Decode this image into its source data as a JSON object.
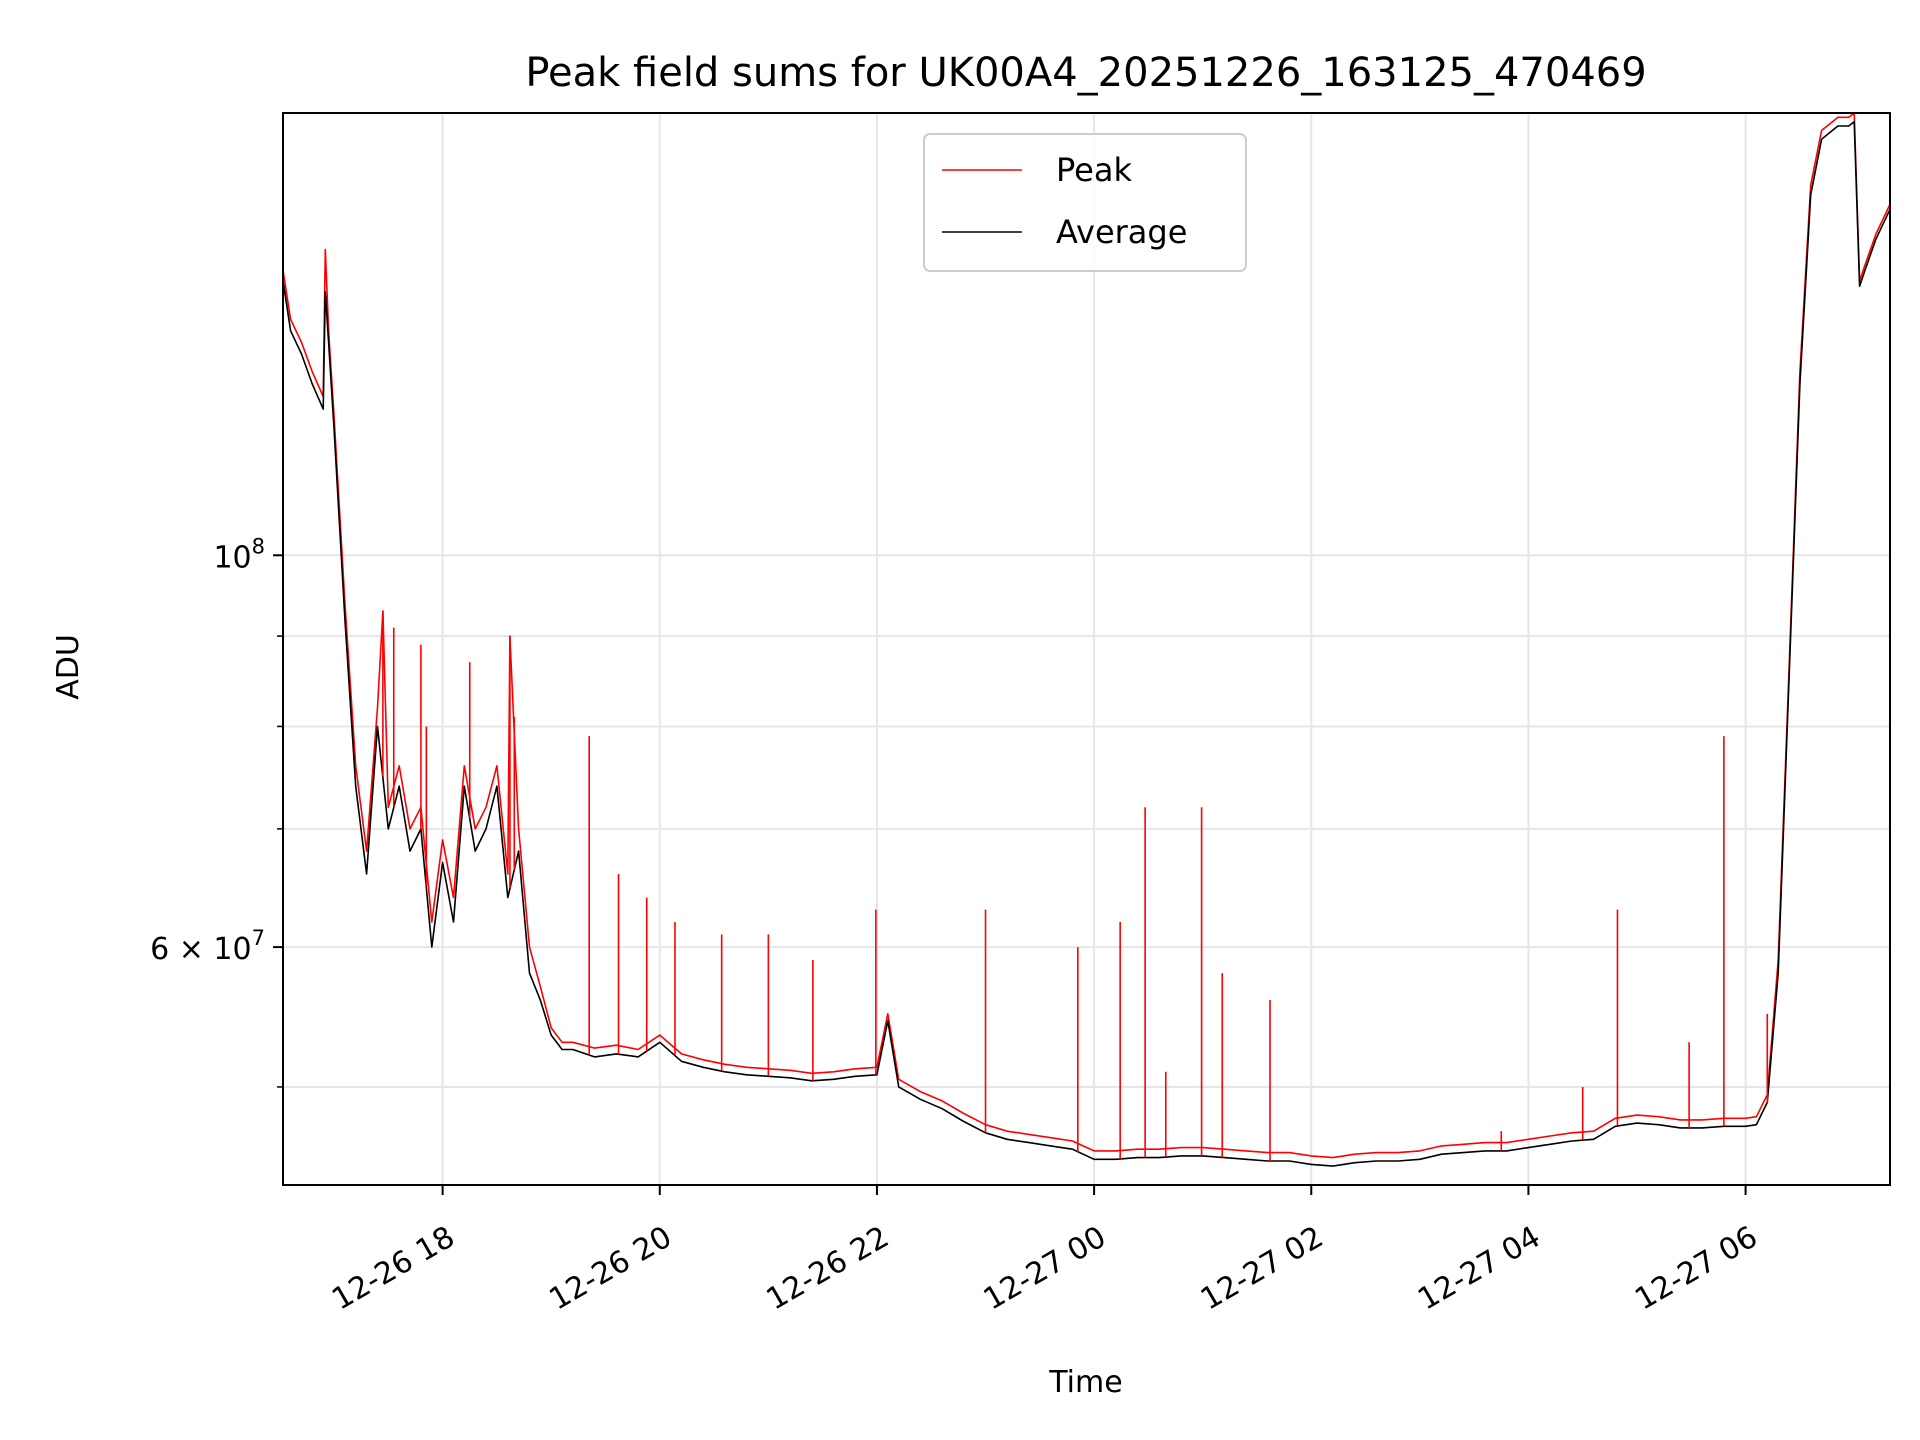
{
  "chart_data": {
    "type": "line",
    "title": "Peak field sums for UK00A4_20251226_163125_470469",
    "xlabel": "Time",
    "ylabel": "ADU",
    "yscale": "log",
    "ylim": [
      44000000,
      178000000
    ],
    "xlim_hours": [
      16.53,
      31.33
    ],
    "grid": true,
    "legend_location": "upper center",
    "x_ticks": [
      {
        "hour": 18,
        "label": "12-26 18"
      },
      {
        "hour": 20,
        "label": "12-26 20"
      },
      {
        "hour": 22,
        "label": "12-26 22"
      },
      {
        "hour": 24,
        "label": "12-27 00"
      },
      {
        "hour": 26,
        "label": "12-27 02"
      },
      {
        "hour": 28,
        "label": "12-27 04"
      },
      {
        "hour": 30,
        "label": "12-27 06"
      }
    ],
    "y_major_ticks": [
      {
        "value": 100000000,
        "base": "10",
        "exp": "8"
      },
      {
        "value": 60000000,
        "mant": "6",
        "base": "10",
        "exp": "7"
      }
    ],
    "y_minor_grid": [
      50000000,
      70000000,
      80000000,
      90000000
    ],
    "series": [
      {
        "name": "Average",
        "color": "#000000",
        "x_hours": [
          16.53,
          16.6,
          16.7,
          16.8,
          16.9,
          16.92,
          16.95,
          17.0,
          17.1,
          17.2,
          17.3,
          17.4,
          17.5,
          17.6,
          17.7,
          17.8,
          17.9,
          18.0,
          18.1,
          18.2,
          18.3,
          18.4,
          18.5,
          18.6,
          18.7,
          18.8,
          18.9,
          19.0,
          19.1,
          19.2,
          19.4,
          19.6,
          19.8,
          20.0,
          20.2,
          20.4,
          20.6,
          20.8,
          21.0,
          21.2,
          21.4,
          21.6,
          21.8,
          22.0,
          22.1,
          22.2,
          22.4,
          22.6,
          22.8,
          23.0,
          23.2,
          23.4,
          23.6,
          23.8,
          24.0,
          24.2,
          24.4,
          24.6,
          24.8,
          25.0,
          25.2,
          25.4,
          25.6,
          25.8,
          26.0,
          26.2,
          26.4,
          26.6,
          26.8,
          27.0,
          27.2,
          27.4,
          27.6,
          27.8,
          28.0,
          28.2,
          28.4,
          28.6,
          28.8,
          29.0,
          29.2,
          29.4,
          29.6,
          29.8,
          30.0,
          30.1,
          30.2,
          30.3,
          30.4,
          30.5,
          30.6,
          30.7,
          30.8,
          30.85,
          30.95,
          31.0,
          31.05,
          31.1,
          31.2,
          31.33
        ],
        "values": [
          143000000,
          134000000,
          130000000,
          125000000,
          121000000,
          141000000,
          132000000,
          118000000,
          92000000,
          74000000,
          66000000,
          80000000,
          70000000,
          74000000,
          68000000,
          70000000,
          60000000,
          67000000,
          62000000,
          74000000,
          68000000,
          70000000,
          74000000,
          64000000,
          68000000,
          58000000,
          56000000,
          53500000,
          52500000,
          52500000,
          52000000,
          52200000,
          52000000,
          53000000,
          51700000,
          51300000,
          51000000,
          50800000,
          50700000,
          50600000,
          50400000,
          50500000,
          50700000,
          50800000,
          54500000,
          50000000,
          49200000,
          48600000,
          47800000,
          47100000,
          46700000,
          46500000,
          46300000,
          46100000,
          45500000,
          45500000,
          45600000,
          45600000,
          45700000,
          45700000,
          45600000,
          45500000,
          45400000,
          45400000,
          45200000,
          45100000,
          45300000,
          45400000,
          45400000,
          45500000,
          45800000,
          45900000,
          46000000,
          46000000,
          46200000,
          46400000,
          46600000,
          46700000,
          47500000,
          47700000,
          47600000,
          47400000,
          47400000,
          47500000,
          47500000,
          47600000,
          49000000,
          58000000,
          85000000,
          125000000,
          160000000,
          172000000,
          174000000,
          175000000,
          175000000,
          176000000,
          142000000,
          145000000,
          151000000,
          157000000
        ]
      },
      {
        "name": "Peak",
        "color": "#ff0000",
        "x_hours": [
          16.53,
          16.6,
          16.7,
          16.8,
          16.9,
          16.92,
          16.95,
          17.0,
          17.1,
          17.2,
          17.3,
          17.4,
          17.45,
          17.5,
          17.6,
          17.7,
          17.8,
          17.9,
          18.0,
          18.1,
          18.2,
          18.3,
          18.4,
          18.5,
          18.6,
          18.62,
          18.7,
          18.8,
          18.9,
          19.0,
          19.1,
          19.2,
          19.4,
          19.6,
          19.8,
          20.0,
          20.2,
          20.4,
          20.6,
          20.8,
          21.0,
          21.2,
          21.4,
          21.6,
          21.8,
          22.0,
          22.1,
          22.2,
          22.4,
          22.6,
          22.8,
          23.0,
          23.2,
          23.4,
          23.6,
          23.8,
          24.0,
          24.2,
          24.4,
          24.6,
          24.8,
          25.0,
          25.2,
          25.4,
          25.6,
          25.8,
          26.0,
          26.2,
          26.4,
          26.6,
          26.8,
          27.0,
          27.2,
          27.4,
          27.6,
          27.8,
          28.0,
          28.2,
          28.4,
          28.6,
          28.8,
          29.0,
          29.2,
          29.4,
          29.6,
          29.8,
          30.0,
          30.1,
          30.2,
          30.3,
          30.4,
          30.5,
          30.6,
          30.7,
          30.8,
          30.85,
          30.95,
          31.0,
          31.05,
          31.1,
          31.2,
          31.33
        ],
        "values": [
          145000000,
          136000000,
          132000000,
          127000000,
          123000000,
          149000000,
          134000000,
          120000000,
          94000000,
          76000000,
          68000000,
          82000000,
          93000000,
          72000000,
          76000000,
          70000000,
          72000000,
          62000000,
          69000000,
          64000000,
          76000000,
          70000000,
          72000000,
          76000000,
          66000000,
          90000000,
          70000000,
          60000000,
          57000000,
          54000000,
          53000000,
          53000000,
          52600000,
          52800000,
          52500000,
          53500000,
          52200000,
          51800000,
          51500000,
          51300000,
          51200000,
          51100000,
          50900000,
          51000000,
          51200000,
          51300000,
          55000000,
          50500000,
          49700000,
          49100000,
          48300000,
          47600000,
          47200000,
          47000000,
          46800000,
          46600000,
          46000000,
          46000000,
          46100000,
          46100000,
          46200000,
          46200000,
          46100000,
          46000000,
          45900000,
          45900000,
          45700000,
          45600000,
          45800000,
          45900000,
          45900000,
          46000000,
          46300000,
          46400000,
          46500000,
          46500000,
          46700000,
          46900000,
          47100000,
          47200000,
          48000000,
          48200000,
          48100000,
          47900000,
          47900000,
          48000000,
          48000000,
          48100000,
          49500000,
          59000000,
          86000000,
          127000000,
          162000000,
          174000000,
          176000000,
          177000000,
          177000000,
          178000000,
          143000000,
          146000000,
          152000000,
          158000000
        ]
      }
    ],
    "peak_spikes": [
      {
        "hour": 17.45,
        "value": 93000000
      },
      {
        "hour": 17.55,
        "value": 91000000
      },
      {
        "hour": 17.8,
        "value": 89000000
      },
      {
        "hour": 17.85,
        "value": 80000000
      },
      {
        "hour": 18.25,
        "value": 87000000
      },
      {
        "hour": 18.62,
        "value": 90000000
      },
      {
        "hour": 18.66,
        "value": 81000000
      },
      {
        "hour": 19.35,
        "value": 79000000
      },
      {
        "hour": 19.62,
        "value": 66000000
      },
      {
        "hour": 19.88,
        "value": 64000000
      },
      {
        "hour": 20.14,
        "value": 62000000
      },
      {
        "hour": 20.57,
        "value": 61000000
      },
      {
        "hour": 21.0,
        "value": 61000000
      },
      {
        "hour": 21.41,
        "value": 59000000
      },
      {
        "hour": 21.99,
        "value": 63000000
      },
      {
        "hour": 23.0,
        "value": 63000000
      },
      {
        "hour": 23.85,
        "value": 60000000
      },
      {
        "hour": 24.24,
        "value": 62000000
      },
      {
        "hour": 24.47,
        "value": 72000000
      },
      {
        "hour": 24.66,
        "value": 51000000
      },
      {
        "hour": 24.99,
        "value": 72000000
      },
      {
        "hour": 25.18,
        "value": 58000000
      },
      {
        "hour": 25.62,
        "value": 56000000
      },
      {
        "hour": 27.75,
        "value": 47200000
      },
      {
        "hour": 28.5,
        "value": 50000000
      },
      {
        "hour": 28.82,
        "value": 63000000
      },
      {
        "hour": 29.48,
        "value": 53000000
      },
      {
        "hour": 29.8,
        "value": 79000000
      },
      {
        "hour": 30.2,
        "value": 55000000
      }
    ]
  }
}
